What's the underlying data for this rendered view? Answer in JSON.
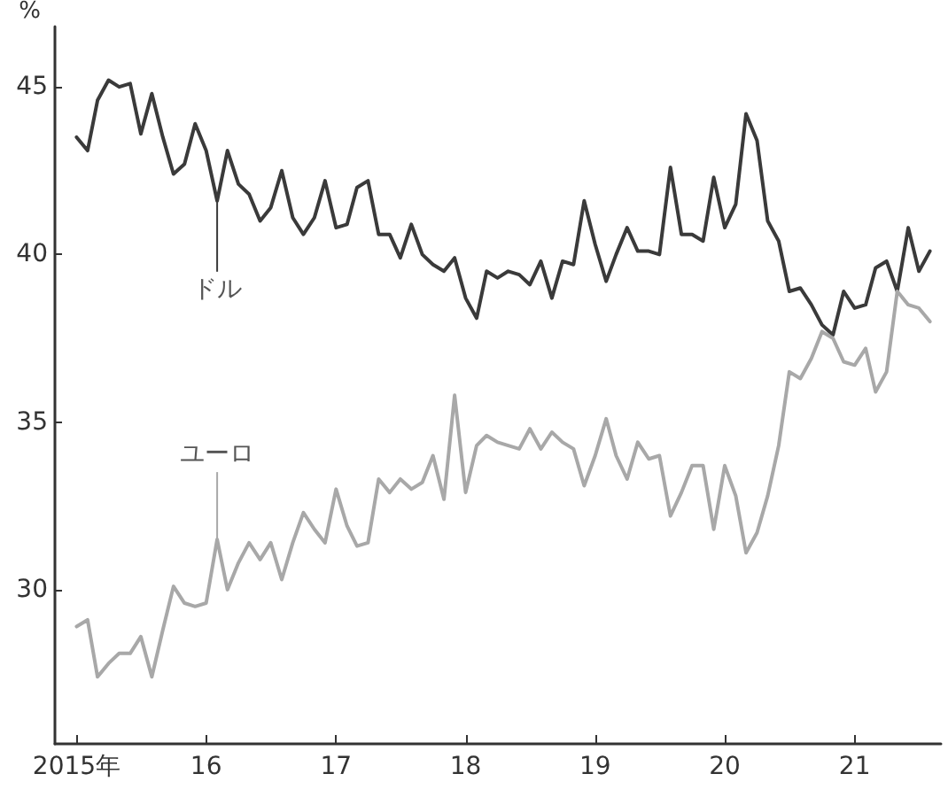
{
  "chart_data": {
    "type": "line",
    "ylabel": "%",
    "legend": false,
    "grid": false,
    "marker": "none",
    "line_style": "solid",
    "x": [
      "2015-01",
      "2015-02",
      "2015-03",
      "2015-04",
      "2015-05",
      "2015-06",
      "2015-07",
      "2015-08",
      "2015-09",
      "2015-10",
      "2015-11",
      "2015-12",
      "2016-01",
      "2016-02",
      "2016-03",
      "2016-04",
      "2016-05",
      "2016-06",
      "2016-07",
      "2016-08",
      "2016-09",
      "2016-10",
      "2016-11",
      "2016-12",
      "2017-01",
      "2017-02",
      "2017-03",
      "2017-04",
      "2017-05",
      "2017-06",
      "2017-07",
      "2017-08",
      "2017-09",
      "2017-10",
      "2017-11",
      "2017-12",
      "2018-01",
      "2018-02",
      "2018-03",
      "2018-04",
      "2018-05",
      "2018-06",
      "2018-07",
      "2018-08",
      "2018-09",
      "2018-10",
      "2018-11",
      "2018-12",
      "2019-01",
      "2019-02",
      "2019-03",
      "2019-04",
      "2019-05",
      "2019-06",
      "2019-07",
      "2019-08",
      "2019-09",
      "2019-10",
      "2019-11",
      "2019-12",
      "2020-01",
      "2020-02",
      "2020-03",
      "2020-04",
      "2020-05",
      "2020-06",
      "2020-07",
      "2020-08",
      "2020-09",
      "2020-10",
      "2020-11",
      "2020-12",
      "2021-01",
      "2021-02",
      "2021-03",
      "2021-04",
      "2021-05",
      "2021-06",
      "2021-07",
      "2021-08"
    ],
    "series": [
      {
        "name": "ドル",
        "color": "#3a3a3a",
        "values": [
          43.5,
          43.1,
          44.6,
          45.2,
          45.0,
          45.1,
          43.6,
          44.8,
          43.5,
          42.4,
          42.7,
          43.9,
          43.1,
          41.6,
          43.1,
          42.1,
          41.8,
          41.0,
          41.4,
          42.5,
          41.1,
          40.6,
          41.1,
          42.2,
          40.8,
          40.9,
          42.0,
          42.2,
          40.6,
          40.6,
          39.9,
          40.9,
          40.0,
          39.7,
          39.5,
          39.9,
          38.7,
          38.1,
          39.5,
          39.3,
          39.5,
          39.4,
          39.1,
          39.8,
          38.7,
          39.8,
          39.7,
          41.6,
          40.3,
          39.2,
          40.0,
          40.8,
          40.1,
          40.1,
          40.0,
          42.6,
          40.6,
          40.6,
          40.4,
          42.3,
          40.8,
          41.5,
          44.2,
          43.4,
          41.0,
          40.4,
          38.9,
          39.0,
          38.5,
          37.9,
          37.6,
          38.9,
          38.4,
          38.5,
          39.6,
          39.8,
          38.9,
          40.8,
          39.5,
          40.1
        ]
      },
      {
        "name": "ユーロ",
        "color": "#a8a8a8",
        "values": [
          28.9,
          29.1,
          27.4,
          27.8,
          28.1,
          28.1,
          28.6,
          27.4,
          28.8,
          30.1,
          29.6,
          29.5,
          29.6,
          31.5,
          30.0,
          30.8,
          31.4,
          30.9,
          31.4,
          30.3,
          31.4,
          32.3,
          31.8,
          31.4,
          33.0,
          31.9,
          31.3,
          31.4,
          33.3,
          32.9,
          33.3,
          33.0,
          33.2,
          34.0,
          32.7,
          35.8,
          32.9,
          34.3,
          34.6,
          34.4,
          34.3,
          34.2,
          34.8,
          34.2,
          34.7,
          34.4,
          34.2,
          33.1,
          34.0,
          35.1,
          34.0,
          33.3,
          34.4,
          33.9,
          34.0,
          32.2,
          32.9,
          33.7,
          33.7,
          31.8,
          33.7,
          32.8,
          31.1,
          31.7,
          32.8,
          34.3,
          36.5,
          36.3,
          36.9,
          37.7,
          37.5,
          36.8,
          36.7,
          37.2,
          35.9,
          36.5,
          38.9,
          38.5,
          38.4,
          38.0
        ]
      }
    ],
    "xlim": [
      "2014-11",
      "2021-09"
    ],
    "xticks": [
      {
        "value": "2015-01",
        "label": "2015年"
      },
      {
        "value": "2016-01",
        "label": "16"
      },
      {
        "value": "2017-01",
        "label": "17"
      },
      {
        "value": "2018-01",
        "label": "18"
      },
      {
        "value": "2019-01",
        "label": "19"
      },
      {
        "value": "2020-01",
        "label": "20"
      },
      {
        "value": "2021-01",
        "label": "21"
      }
    ],
    "ylim": [
      25.4,
      46.8
    ],
    "yticks": [
      30,
      35,
      40,
      45
    ]
  }
}
